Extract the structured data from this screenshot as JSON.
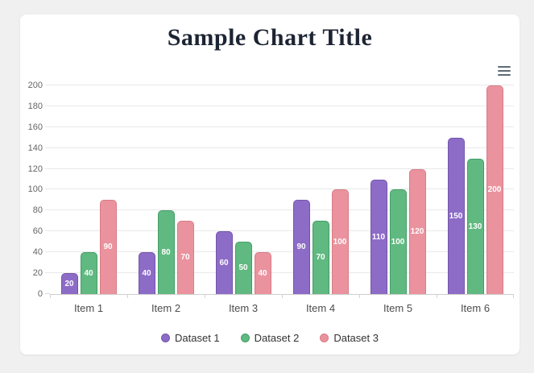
{
  "page": {
    "background": "#f0f0f1"
  },
  "card": {
    "background": "#ffffff"
  },
  "header": {
    "title": "Sample Chart Title",
    "title_color": "#1d2433"
  },
  "menu": {
    "icon": "hamburger-menu-icon",
    "color": "#5f6b76"
  },
  "chart_data": {
    "type": "bar",
    "title": "Sample Chart Title",
    "categories": [
      "Item 1",
      "Item 2",
      "Item 3",
      "Item 4",
      "Item 5",
      "Item 6"
    ],
    "series": [
      {
        "name": "Dataset 1",
        "color": "#8d6cc8",
        "border_color": "#7456aa",
        "values": [
          20,
          40,
          60,
          90,
          110,
          150
        ]
      },
      {
        "name": "Dataset 2",
        "color": "#60b980",
        "border_color": "#449e68",
        "values": [
          40,
          80,
          50,
          70,
          100,
          130
        ]
      },
      {
        "name": "Dataset 3",
        "color": "#ea939e",
        "border_color": "#d87c88",
        "values": [
          90,
          70,
          40,
          100,
          120,
          200
        ]
      }
    ],
    "xlabel": "",
    "ylabel": "",
    "ylim": [
      0,
      200
    ],
    "y_ticks": [
      0,
      20,
      40,
      60,
      80,
      100,
      120,
      140,
      160,
      180,
      200
    ],
    "grid": true,
    "gridline_color": "#e9e9e9",
    "axis_text_color": "#666666",
    "legend_position": "bottom",
    "data_labels": "values shown in white, centered inside bars"
  }
}
